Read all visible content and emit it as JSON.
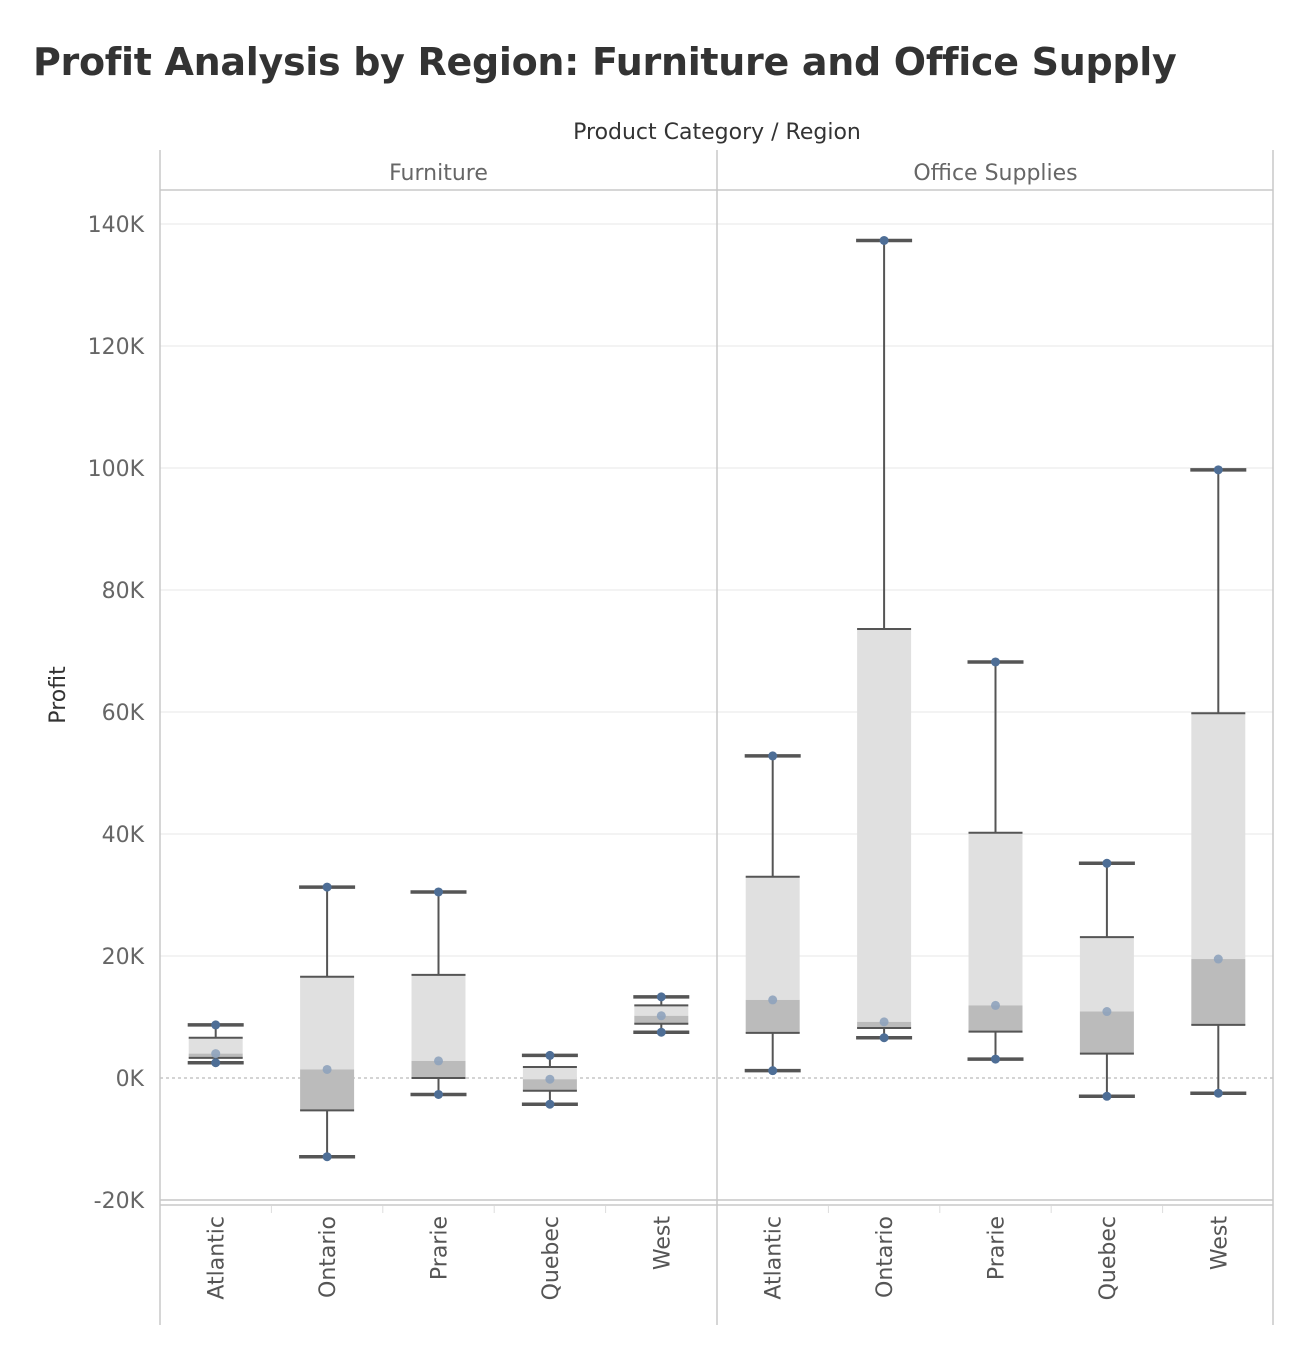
{
  "title": "Profit Analysis by Region: Furniture and Office Supply",
  "chart_data": {
    "type": "boxplot",
    "column_header": "Product Category / Region",
    "ylabel": "Profit",
    "ylim": [
      -20000,
      140000
    ],
    "y_ticks": [
      -20000,
      0,
      20000,
      40000,
      60000,
      80000,
      100000,
      120000,
      140000
    ],
    "y_tick_labels": [
      "-20K",
      "0K",
      "20K",
      "40K",
      "60K",
      "80K",
      "100K",
      "120K",
      "140K"
    ],
    "grid": true,
    "colors": {
      "upper_box": "#e0e0e0",
      "lower_box": "#bbbbbb",
      "whisker": "#555555",
      "point": "#4e6e96",
      "median_point": "#8fa3bd",
      "zero_line": "#aaaaaa",
      "gridline": "#ececec"
    },
    "panels": [
      {
        "category": "Furniture",
        "regions": [
          {
            "region": "Atlantic",
            "min": 2500,
            "q1": 3300,
            "median": 4000,
            "q3": 6600,
            "max": 8700
          },
          {
            "region": "Ontario",
            "min": -12900,
            "q1": -5300,
            "median": 1400,
            "q3": 16600,
            "max": 31300
          },
          {
            "region": "Prarie",
            "min": -2700,
            "q1": 0,
            "median": 2800,
            "q3": 16900,
            "max": 30500
          },
          {
            "region": "Quebec",
            "min": -4300,
            "q1": -2100,
            "median": -200,
            "q3": 1800,
            "max": 3700
          },
          {
            "region": "West",
            "min": 7500,
            "q1": 8900,
            "median": 10200,
            "q3": 11900,
            "max": 13300
          }
        ]
      },
      {
        "category": "Office Supplies",
        "regions": [
          {
            "region": "Atlantic",
            "min": 1200,
            "q1": 7400,
            "median": 12800,
            "q3": 33000,
            "max": 52800
          },
          {
            "region": "Ontario",
            "min": 6600,
            "q1": 8200,
            "median": 9200,
            "q3": 73600,
            "max": 137300
          },
          {
            "region": "Prarie",
            "min": 3100,
            "q1": 7600,
            "median": 11900,
            "q3": 40200,
            "max": 68200
          },
          {
            "region": "Quebec",
            "min": -3000,
            "q1": 4000,
            "median": 10900,
            "q3": 23100,
            "max": 35200
          },
          {
            "region": "West",
            "min": -2500,
            "q1": 8700,
            "median": 19500,
            "q3": 59800,
            "max": 99700
          }
        ]
      }
    ]
  }
}
